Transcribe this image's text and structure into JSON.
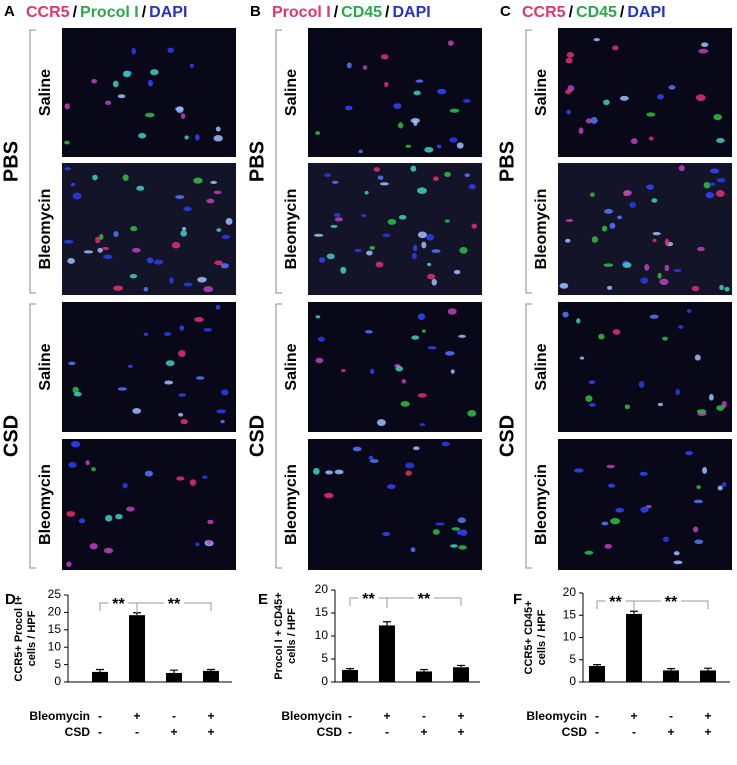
{
  "separator": "/",
  "group_labels": [
    "PBS",
    "CSD"
  ],
  "row_labels": [
    "Saline",
    "Bleomycin"
  ],
  "panels": [
    {
      "label": "A",
      "header": [
        {
          "text": "CCR5",
          "color": "#e5336c"
        },
        {
          "text": "Procol I",
          "color": "#2aa84a"
        },
        {
          "text": "DAPI",
          "color": "#2233cc"
        }
      ]
    },
    {
      "label": "B",
      "header": [
        {
          "text": "Procol I",
          "color": "#e5336c"
        },
        {
          "text": "CD45",
          "color": "#2aa84a"
        },
        {
          "text": "DAPI",
          "color": "#2233cc"
        }
      ]
    },
    {
      "label": "C",
      "header": [
        {
          "text": "CCR5",
          "color": "#e5336c"
        },
        {
          "text": "CD45",
          "color": "#2aa84a"
        },
        {
          "text": "DAPI",
          "color": "#2233cc"
        }
      ]
    }
  ],
  "chart_data": [
    {
      "type": "bar",
      "label": "D",
      "y_label": [
        "CCR5+ Procol I+",
        "cells / HPF"
      ],
      "ylim": [
        0,
        25
      ],
      "yticks": [
        0,
        5,
        10,
        15,
        20,
        25
      ],
      "values": [
        2.9,
        19.2,
        2.6,
        3.2
      ],
      "errors": [
        0.7,
        0.7,
        0.8,
        0.4
      ],
      "color": "#000000",
      "factor_labels": [
        "Bleomycin",
        "CSD"
      ],
      "factor_levels": [
        [
          "-",
          "+",
          "-",
          "+"
        ],
        [
          "-",
          "-",
          "+",
          "+"
        ]
      ],
      "significance": [
        "**",
        "**"
      ]
    },
    {
      "type": "bar",
      "label": "E",
      "y_label": [
        "Procol I + CD45+",
        "cells / HPF"
      ],
      "ylim": [
        0,
        20
      ],
      "yticks": [
        0,
        5,
        10,
        15,
        20
      ],
      "values": [
        2.6,
        12.3,
        2.3,
        3.2
      ],
      "errors": [
        0.3,
        0.8,
        0.4,
        0.4
      ],
      "color": "#000000",
      "factor_labels": [
        "Bleomycin",
        "CSD"
      ],
      "factor_levels": [
        [
          "-",
          "+",
          "-",
          "+"
        ],
        [
          "-",
          "-",
          "+",
          "+"
        ]
      ],
      "significance": [
        "**",
        "**"
      ]
    },
    {
      "type": "bar",
      "label": "F",
      "y_label": [
        "CCR5+ CD45+",
        "cells / HPF"
      ],
      "ylim": [
        0,
        20
      ],
      "yticks": [
        0,
        5,
        10,
        15,
        20
      ],
      "values": [
        3.6,
        15.3,
        2.6,
        2.6
      ],
      "errors": [
        0.3,
        0.6,
        0.4,
        0.5
      ],
      "color": "#000000",
      "factor_labels": [
        "Bleomycin",
        "CSD"
      ],
      "factor_levels": [
        [
          "-",
          "+",
          "-",
          "+"
        ],
        [
          "-",
          "-",
          "+",
          "+"
        ]
      ],
      "significance": [
        "**",
        "**"
      ]
    }
  ]
}
